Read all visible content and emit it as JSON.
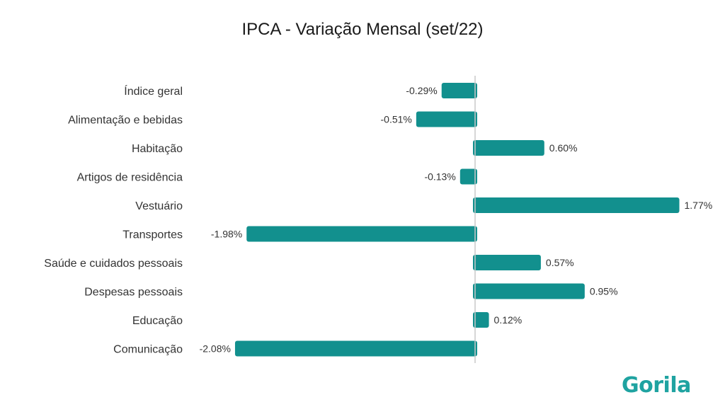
{
  "chart_data": {
    "type": "bar",
    "orientation": "horizontal",
    "title": "IPCA - Variação Mensal (set/22)",
    "categories": [
      "Índice geral",
      "Alimentação e bebidas",
      "Habitação",
      "Artigos de residência",
      "Vestuário",
      "Transportes",
      "Saúde e cuidados pessoais",
      "Despesas pessoais",
      "Educação",
      "Comunicação"
    ],
    "values": [
      -0.29,
      -0.51,
      0.6,
      -0.13,
      1.77,
      -1.98,
      0.57,
      0.95,
      0.12,
      -2.08
    ],
    "value_labels": [
      "-0.29%",
      "-0.51%",
      "0.60%",
      "-0.13%",
      "1.77%",
      "-1.98%",
      "0.57%",
      "0.95%",
      "0.12%",
      "-2.08%"
    ],
    "unit": "%",
    "xlim": [
      -2.2,
      1.9
    ],
    "grid": false,
    "bar_color": "#12908e"
  },
  "logo": {
    "text": "Gorila",
    "color": "#1fa3a1"
  }
}
